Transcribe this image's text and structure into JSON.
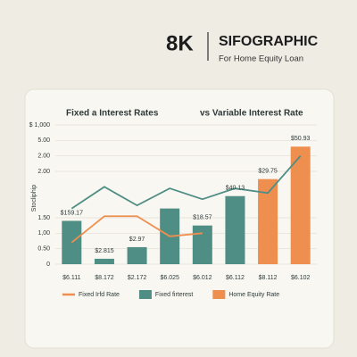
{
  "header": {
    "badge": "8K",
    "title": "SIFOGRAPHIC",
    "subtitle": "For Home Equity Loan"
  },
  "chart_data": {
    "type": "bar",
    "title": "Fixed a Interest Rates",
    "subtitle": "vs Variable Interest Rate",
    "ylabel": "Stocliphip",
    "categories": [
      "$6.111",
      "$8.172",
      "$2.172",
      "$6.025",
      "$6.012",
      "$6.112",
      "$8.112",
      "$6.102"
    ],
    "ylim": [
      0,
      9
    ],
    "yticks": [
      0,
      {
        "value": 1,
        "label": "0.50"
      },
      {
        "value": 2,
        "label": "1,00"
      },
      {
        "value": 3,
        "label": "1.50"
      },
      {
        "value": 6,
        "label": "2.00"
      },
      {
        "value": 7,
        "label": "2.00"
      },
      {
        "value": 8,
        "label": "5.00"
      },
      {
        "value": 9,
        "label": "$ 1,000"
      }
    ],
    "grid": true,
    "series": [
      {
        "name": "Fixed firterest",
        "kind": "bar",
        "color": "#4f8e85",
        "values": [
          2.8,
          0.35,
          1.1,
          3.6,
          2.5,
          4.4,
          null,
          null
        ]
      },
      {
        "name": "Home Equity Rate",
        "kind": "bar",
        "color": "#ef8f4f",
        "values": [
          null,
          null,
          null,
          null,
          null,
          null,
          5.5,
          7.6
        ]
      },
      {
        "name": "Fixed Irfd Rate",
        "kind": "line",
        "color": "#ef8f4f",
        "values": [
          1.4,
          3.1,
          3.1,
          1.8,
          2.0,
          null,
          null,
          null
        ]
      },
      {
        "kind": "line",
        "color": "#4f8e85",
        "values": [
          3.6,
          5.0,
          3.8,
          4.9,
          4.2,
          4.9,
          4.6,
          7.0
        ]
      }
    ],
    "bar_annotations": [
      "$159.17",
      "$2.815",
      "$2.97",
      null,
      "$18.57",
      "$40.13",
      "$29.75",
      "$50.93"
    ],
    "legend_order": [
      2,
      0,
      1
    ]
  }
}
